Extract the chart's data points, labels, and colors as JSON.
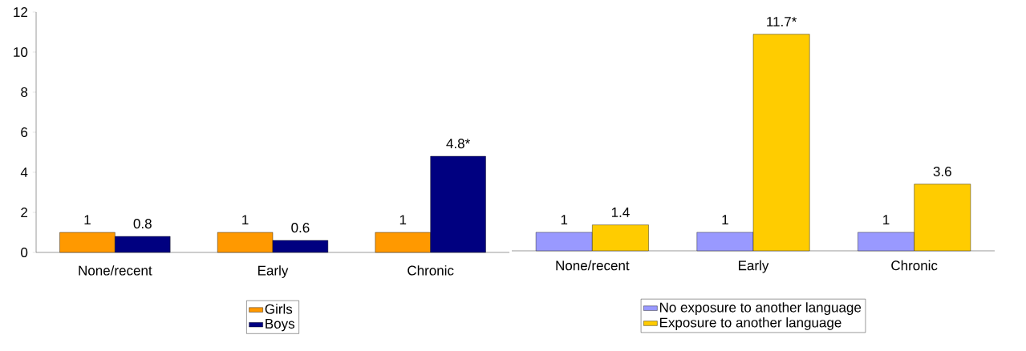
{
  "chart_data": [
    {
      "type": "bar",
      "categories": [
        "None/recent",
        "Early",
        "Chronic"
      ],
      "series": [
        {
          "name": "Girls",
          "color": "#ff9900",
          "values": [
            1,
            1,
            1
          ],
          "value_labels": [
            "1",
            "1",
            "1"
          ]
        },
        {
          "name": "Boys",
          "color": "#000080",
          "values": [
            0.8,
            0.6,
            4.8
          ],
          "value_labels": [
            "0.8",
            "0.6",
            "4.8*"
          ]
        }
      ],
      "ylim": [
        0,
        12
      ],
      "yticks": [
        0,
        2,
        4,
        6,
        8,
        10,
        12
      ],
      "grid": false,
      "legend": "bottom"
    },
    {
      "type": "bar",
      "categories": [
        "None/recent",
        "Early",
        "Chronic"
      ],
      "series": [
        {
          "name": "No exposure to another language",
          "color": "#9999ff",
          "values": [
            1,
            1,
            1
          ],
          "value_labels": [
            "1",
            "1",
            "1"
          ]
        },
        {
          "name": "Exposure to another language",
          "color": "#ffcc00",
          "values": [
            1.4,
            11.7,
            3.6
          ],
          "value_labels": [
            "1.4",
            "11.7*",
            "3.6"
          ]
        }
      ],
      "tick_labels": "x",
      "grid": false,
      "legend": "bottom"
    }
  ]
}
